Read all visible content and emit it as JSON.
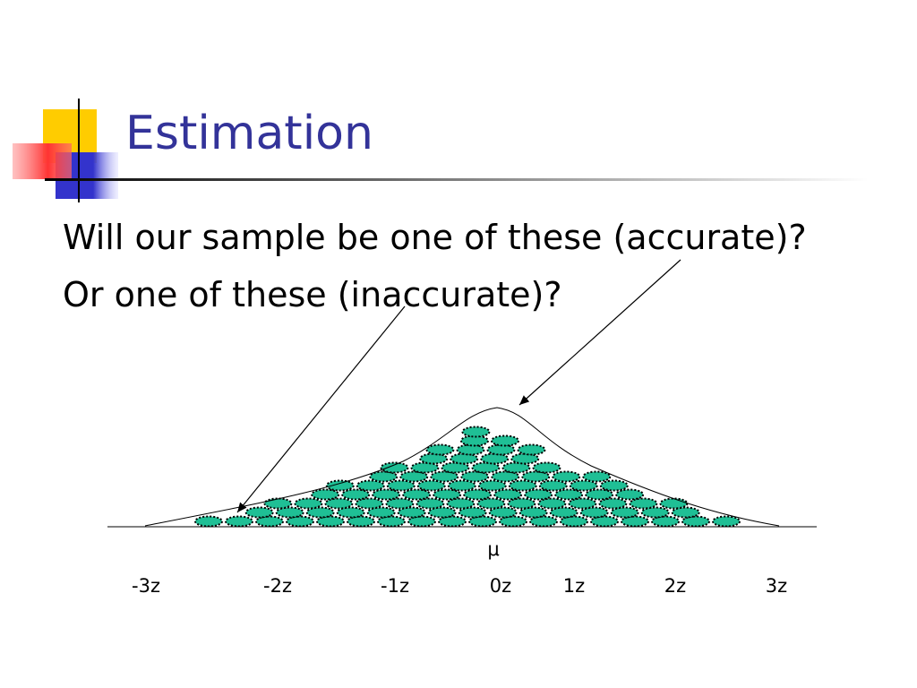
{
  "title": "Estimation",
  "bullets": [
    "Will our sample be one of these (accurate)?",
    "Or one of these (inaccurate)?"
  ],
  "diagram": {
    "mean_label": "μ",
    "axis_labels": [
      "-3z",
      "-2z",
      "-1z",
      "0z",
      "1z",
      "2z",
      "3z"
    ]
  }
}
